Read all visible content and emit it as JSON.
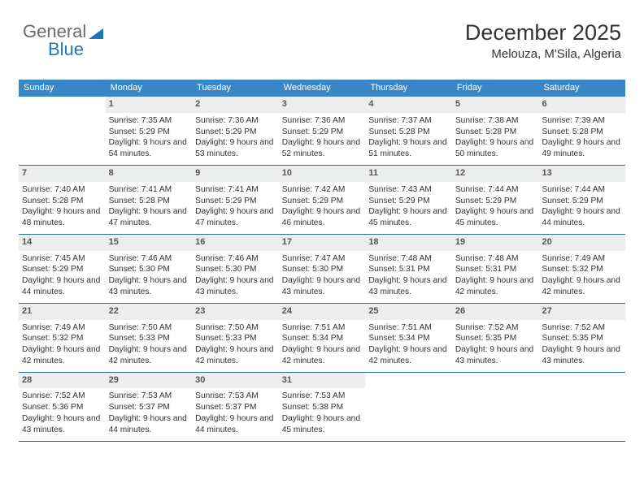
{
  "brand": {
    "part1": "General",
    "part2": "Blue"
  },
  "title": "December 2025",
  "location": "Melouza, M'Sila, Algeria",
  "colors": {
    "header_bg": "#3a87c7",
    "header_fg": "#ffffff",
    "daynum_bg": "#eceded",
    "rule": "#2f6fa3",
    "brand_blue": "#2176b8",
    "brand_gray": "#6a6a6a"
  },
  "dayNames": [
    "Sunday",
    "Monday",
    "Tuesday",
    "Wednesday",
    "Thursday",
    "Friday",
    "Saturday"
  ],
  "firstWeekday": 1,
  "daysInMonth": 31,
  "days": {
    "1": {
      "sunrise": "7:35 AM",
      "sunset": "5:29 PM",
      "daylight": "9 hours and 54 minutes."
    },
    "2": {
      "sunrise": "7:36 AM",
      "sunset": "5:29 PM",
      "daylight": "9 hours and 53 minutes."
    },
    "3": {
      "sunrise": "7:36 AM",
      "sunset": "5:29 PM",
      "daylight": "9 hours and 52 minutes."
    },
    "4": {
      "sunrise": "7:37 AM",
      "sunset": "5:28 PM",
      "daylight": "9 hours and 51 minutes."
    },
    "5": {
      "sunrise": "7:38 AM",
      "sunset": "5:28 PM",
      "daylight": "9 hours and 50 minutes."
    },
    "6": {
      "sunrise": "7:39 AM",
      "sunset": "5:28 PM",
      "daylight": "9 hours and 49 minutes."
    },
    "7": {
      "sunrise": "7:40 AM",
      "sunset": "5:28 PM",
      "daylight": "9 hours and 48 minutes."
    },
    "8": {
      "sunrise": "7:41 AM",
      "sunset": "5:28 PM",
      "daylight": "9 hours and 47 minutes."
    },
    "9": {
      "sunrise": "7:41 AM",
      "sunset": "5:29 PM",
      "daylight": "9 hours and 47 minutes."
    },
    "10": {
      "sunrise": "7:42 AM",
      "sunset": "5:29 PM",
      "daylight": "9 hours and 46 minutes."
    },
    "11": {
      "sunrise": "7:43 AM",
      "sunset": "5:29 PM",
      "daylight": "9 hours and 45 minutes."
    },
    "12": {
      "sunrise": "7:44 AM",
      "sunset": "5:29 PM",
      "daylight": "9 hours and 45 minutes."
    },
    "13": {
      "sunrise": "7:44 AM",
      "sunset": "5:29 PM",
      "daylight": "9 hours and 44 minutes."
    },
    "14": {
      "sunrise": "7:45 AM",
      "sunset": "5:29 PM",
      "daylight": "9 hours and 44 minutes."
    },
    "15": {
      "sunrise": "7:46 AM",
      "sunset": "5:30 PM",
      "daylight": "9 hours and 43 minutes."
    },
    "16": {
      "sunrise": "7:46 AM",
      "sunset": "5:30 PM",
      "daylight": "9 hours and 43 minutes."
    },
    "17": {
      "sunrise": "7:47 AM",
      "sunset": "5:30 PM",
      "daylight": "9 hours and 43 minutes."
    },
    "18": {
      "sunrise": "7:48 AM",
      "sunset": "5:31 PM",
      "daylight": "9 hours and 43 minutes."
    },
    "19": {
      "sunrise": "7:48 AM",
      "sunset": "5:31 PM",
      "daylight": "9 hours and 42 minutes."
    },
    "20": {
      "sunrise": "7:49 AM",
      "sunset": "5:32 PM",
      "daylight": "9 hours and 42 minutes."
    },
    "21": {
      "sunrise": "7:49 AM",
      "sunset": "5:32 PM",
      "daylight": "9 hours and 42 minutes."
    },
    "22": {
      "sunrise": "7:50 AM",
      "sunset": "5:33 PM",
      "daylight": "9 hours and 42 minutes."
    },
    "23": {
      "sunrise": "7:50 AM",
      "sunset": "5:33 PM",
      "daylight": "9 hours and 42 minutes."
    },
    "24": {
      "sunrise": "7:51 AM",
      "sunset": "5:34 PM",
      "daylight": "9 hours and 42 minutes."
    },
    "25": {
      "sunrise": "7:51 AM",
      "sunset": "5:34 PM",
      "daylight": "9 hours and 42 minutes."
    },
    "26": {
      "sunrise": "7:52 AM",
      "sunset": "5:35 PM",
      "daylight": "9 hours and 43 minutes."
    },
    "27": {
      "sunrise": "7:52 AM",
      "sunset": "5:35 PM",
      "daylight": "9 hours and 43 minutes."
    },
    "28": {
      "sunrise": "7:52 AM",
      "sunset": "5:36 PM",
      "daylight": "9 hours and 43 minutes."
    },
    "29": {
      "sunrise": "7:53 AM",
      "sunset": "5:37 PM",
      "daylight": "9 hours and 44 minutes."
    },
    "30": {
      "sunrise": "7:53 AM",
      "sunset": "5:37 PM",
      "daylight": "9 hours and 44 minutes."
    },
    "31": {
      "sunrise": "7:53 AM",
      "sunset": "5:38 PM",
      "daylight": "9 hours and 45 minutes."
    }
  },
  "labels": {
    "sunrise": "Sunrise:",
    "sunset": "Sunset:",
    "daylight": "Daylight:"
  }
}
